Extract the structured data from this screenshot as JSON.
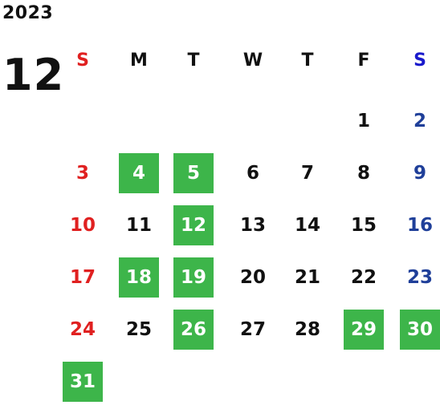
{
  "calendar": {
    "year": "2023",
    "month": "12",
    "weekdays": [
      "S",
      "M",
      "T",
      "W",
      "T",
      "F",
      "S"
    ],
    "start_offset": 5,
    "days": [
      "1",
      "2",
      "3",
      "4",
      "5",
      "6",
      "7",
      "8",
      "9",
      "10",
      "11",
      "12",
      "13",
      "14",
      "15",
      "16",
      "17",
      "18",
      "19",
      "20",
      "21",
      "22",
      "23",
      "24",
      "25",
      "26",
      "27",
      "28",
      "29",
      "30",
      "31"
    ],
    "highlighted_days": [
      "4",
      "5",
      "12",
      "18",
      "19",
      "26",
      "29",
      "30",
      "31"
    ]
  },
  "colors": {
    "highlight_bg": "#3db54a",
    "highlight_text": "#ffffff",
    "sunday": "#e02020",
    "saturday_header": "#1a1acc",
    "saturday": "#1f3f99",
    "weekday": "#111111"
  }
}
